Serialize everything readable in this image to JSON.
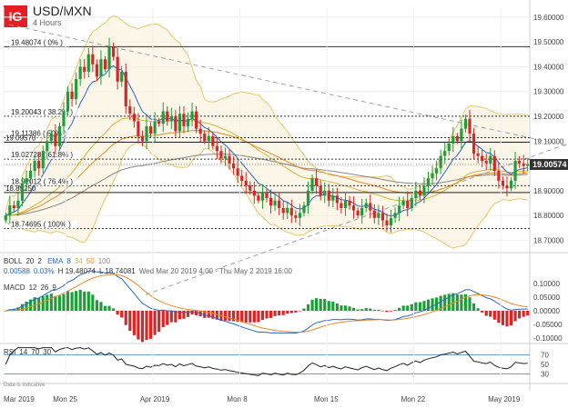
{
  "header": {
    "logo": "IG",
    "symbol": "USD/MXN",
    "timeframe": "4 Hours"
  },
  "boll_label": {
    "name": "BOLL",
    "p1": "20",
    "p2": "2",
    "ema_name": "EMA",
    "ema_p1": "8",
    "ema_p2": "34",
    "ema_p3": "50",
    "ema_p4": "100",
    "chg": "0.00588",
    "chg_pct": "0.03%",
    "high": "H 19.48074",
    "low": "L 18.74081",
    "range": "Wed Mar 20 2019 4:00 - Thu May 2 2019 16:00"
  },
  "macd_label": {
    "name": "MACD",
    "p1": "12",
    "p2": "26",
    "p3": "9"
  },
  "rsi_label": {
    "name": "RSI",
    "p1": "14",
    "p2": "70",
    "p3": "30"
  },
  "disclaimer": "Data is indicative",
  "current_price": "19.00574",
  "colors": {
    "up": "#1e9e3a",
    "down": "#d62728",
    "boll": "#e5c76b",
    "ema8": "#2b65c7",
    "ema34": "#d4b63a",
    "ema50": "#e58a2a",
    "ema100": "#888888",
    "fib": "#333333",
    "trend": "#9aa3b0"
  },
  "chart_data": [
    {
      "type": "candlestick",
      "title": "USD/MXN",
      "subtitle": "4 Hours",
      "y_ticks": [
        19.6,
        19.5,
        19.4,
        19.3,
        19.2,
        19.1,
        19.0,
        18.9,
        18.8,
        18.7
      ],
      "y_tick_labels": [
        "19.60000",
        "19.50000",
        "19.40000",
        "19.30000",
        "19.20000",
        "19.10000",
        "19.00000",
        "18.90000",
        "18.80000",
        "18.70000"
      ],
      "ylim": [
        18.65,
        19.64
      ],
      "x_tick_labels": [
        "Mar 2019",
        "Mon 25",
        "Apr 2019",
        "Mon 8",
        "Mon 15",
        "Mon 22",
        "May 2019"
      ],
      "x_tick_index": [
        0,
        15,
        36,
        57,
        78,
        99,
        120
      ],
      "n_bars": 127,
      "fib_levels": [
        {
          "label": "19.48074 ( 0% )",
          "value": 19.48074,
          "style": "solid"
        },
        {
          "label": "19.20043 ( 38.2% )",
          "value": 19.20043,
          "style": "dotted"
        },
        {
          "label": "19.11386 ( 50% )",
          "value": 19.11386,
          "style": "dotted"
        },
        {
          "label": "19.02728 ( 61.8% )",
          "value": 19.02728,
          "style": "dotted"
        },
        {
          "label": "18.92012 ( 76.4% )",
          "value": 18.92012,
          "style": "dotted"
        },
        {
          "label": "18.74695 ( 100% )",
          "value": 18.74695,
          "style": "dotted"
        }
      ],
      "horizontal_levels": [
        {
          "label": "19.09570",
          "value": 19.0957
        },
        {
          "label": "18.89250",
          "value": 18.8925
        }
      ],
      "closes": [
        18.8,
        18.84,
        18.83,
        18.86,
        18.93,
        18.95,
        18.98,
        19.02,
        18.99,
        19.06,
        19.1,
        19.13,
        19.08,
        19.16,
        19.22,
        19.3,
        19.27,
        19.35,
        19.4,
        19.38,
        19.45,
        19.41,
        19.36,
        19.43,
        19.39,
        19.48,
        19.44,
        19.34,
        19.38,
        19.24,
        19.21,
        19.18,
        19.12,
        19.1,
        19.16,
        19.13,
        19.18,
        19.17,
        19.22,
        19.18,
        19.2,
        19.14,
        19.21,
        19.16,
        19.19,
        19.22,
        19.15,
        19.13,
        19.1,
        19.12,
        19.08,
        19.06,
        19.03,
        19.04,
        19.01,
        18.99,
        18.96,
        18.94,
        18.92,
        18.9,
        18.88,
        18.86,
        18.89,
        18.87,
        18.84,
        18.86,
        18.83,
        18.81,
        18.83,
        18.8,
        18.79,
        18.81,
        18.84,
        18.9,
        18.95,
        18.92,
        18.88,
        18.9,
        18.86,
        18.88,
        18.85,
        18.83,
        18.86,
        18.84,
        18.82,
        18.8,
        18.83,
        18.85,
        18.82,
        18.79,
        18.81,
        18.78,
        18.76,
        18.79,
        18.81,
        18.84,
        18.86,
        18.83,
        18.87,
        18.9,
        18.88,
        18.92,
        18.95,
        18.97,
        18.99,
        19.04,
        19.06,
        19.09,
        19.12,
        19.1,
        19.15,
        19.19,
        19.13,
        19.05,
        19.04,
        19.02,
        19.01,
        19.04,
        18.98,
        18.94,
        18.92,
        18.91,
        18.94,
        19.02,
        19.01,
        19.0,
        19.006
      ],
      "macd": {
        "ylim": [
          -0.12,
          0.12
        ],
        "y_ticks": [
          0.1,
          0.05,
          0.0,
          -0.05,
          -0.1
        ],
        "y_tick_labels": [
          "0.10000",
          "0.05000",
          "0.00000",
          "-0.05000",
          "-0.10000"
        ]
      },
      "rsi": {
        "ylim": [
          10,
          90
        ],
        "y_ticks": [
          70,
          50,
          30
        ],
        "y_tick_labels": [
          "70",
          "50",
          "30"
        ],
        "levels": [
          70,
          30
        ]
      }
    }
  ]
}
